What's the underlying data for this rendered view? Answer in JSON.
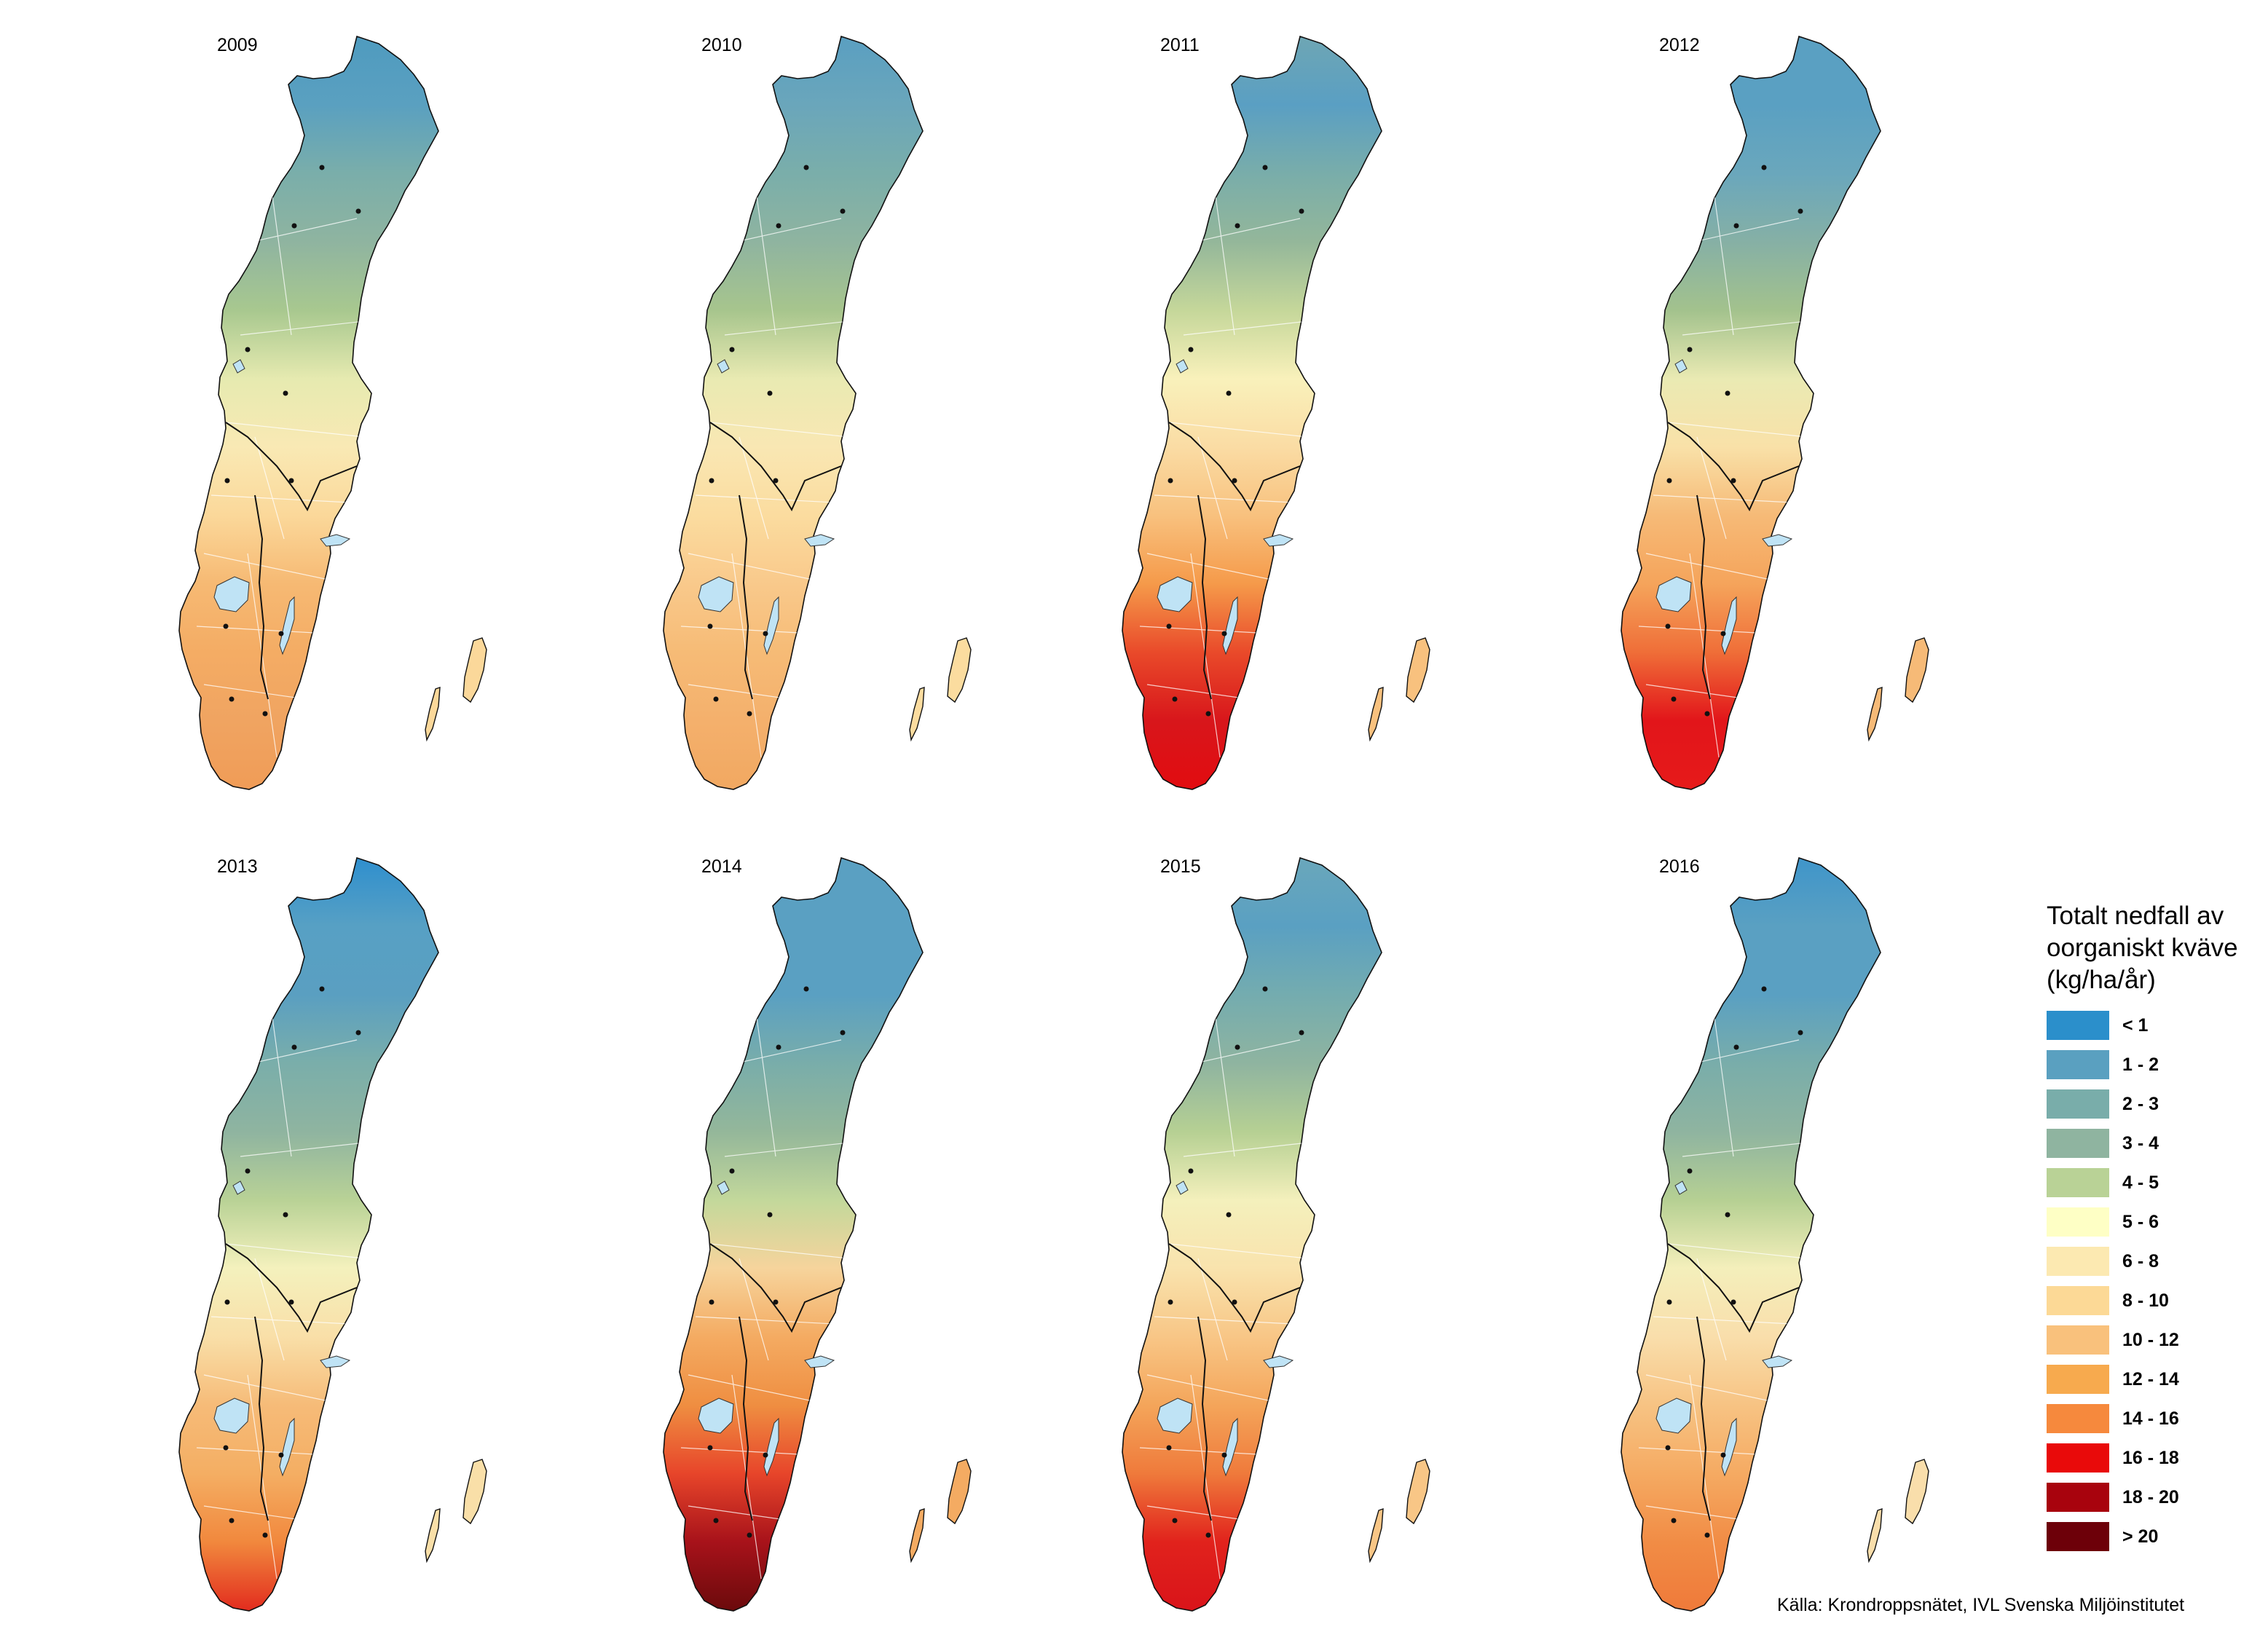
{
  "panels": [
    {
      "year": "2009",
      "gradient": [
        "#4f9bbf",
        "#5aa0c0",
        "#7aaeaa",
        "#8fb4a0",
        "#a8c88f",
        "#e6eab0",
        "#f9e9b4",
        "#fbd89a",
        "#f6b973",
        "#f4ac64",
        "#f0a461",
        "#f09c57"
      ]
    },
    {
      "year": "2010",
      "gradient": [
        "#5a9fc1",
        "#6aa6bb",
        "#7aaeaa",
        "#8fb4a0",
        "#a7c58d",
        "#e9eab2",
        "#f9e7b3",
        "#fbdc9f",
        "#f9c98b",
        "#f6bb76",
        "#f4b06c",
        "#f1a861"
      ]
    },
    {
      "year": "2011",
      "gradient": [
        "#6ea6b4",
        "#5a9fc3",
        "#79adaa",
        "#94b79a",
        "#c5d79a",
        "#f9f1bb",
        "#fadca4",
        "#f8c17e",
        "#f59a4a",
        "#e94a2a",
        "#d8161b",
        "#e20c10"
      ]
    },
    {
      "year": "2012",
      "gradient": [
        "#5aa0c2",
        "#5aa0c2",
        "#6aa7bc",
        "#86b0a5",
        "#a3c28d",
        "#eaeab3",
        "#f9e1a8",
        "#f6ba77",
        "#f5a45b",
        "#ef6e38",
        "#e2151a",
        "#e61a1a"
      ]
    },
    {
      "year": "2013",
      "gradient": [
        "#2f8fce",
        "#57a0c4",
        "#5a9fc1",
        "#7aaeaa",
        "#8fb4a0",
        "#b9d296",
        "#f4f1bd",
        "#f9dfa8",
        "#f6bb78",
        "#f4ae63",
        "#f1883d",
        "#e22c1e"
      ]
    },
    {
      "year": "2014",
      "gradient": [
        "#5aa0c2",
        "#5aa0c2",
        "#5aa0c2",
        "#79adaa",
        "#94b79a",
        "#c3d89b",
        "#f6d49c",
        "#f4ab62",
        "#ef8e41",
        "#e7452a",
        "#a7121a",
        "#6b0a0c"
      ]
    },
    {
      "year": "2015",
      "gradient": [
        "#6aa7bb",
        "#5aa0c2",
        "#74acaf",
        "#8fb4a0",
        "#b6d093",
        "#f4f0bc",
        "#f9e3ad",
        "#f8c686",
        "#f4a55a",
        "#ef7a3b",
        "#e1221c",
        "#d9141a"
      ]
    },
    {
      "year": "2016",
      "gradient": [
        "#3f95ca",
        "#5aa0c2",
        "#5aa0c2",
        "#79adaa",
        "#8fb4a0",
        "#b6d093",
        "#f4efbb",
        "#f9deab",
        "#f7c383",
        "#f5aa62",
        "#f18c45",
        "#ef7a3a"
      ]
    }
  ],
  "legend": {
    "title_lines": [
      "Totalt nedfall av",
      "oorganiskt kväve",
      "(kg/ha/år)"
    ],
    "items": [
      {
        "label": "< 1",
        "color": "#2b8fcb"
      },
      {
        "label": "1 - 2",
        "color": "#5aa0c0"
      },
      {
        "label": "2 - 3",
        "color": "#79adaa"
      },
      {
        "label": "3 - 4",
        "color": "#8fb4a0"
      },
      {
        "label": "4 - 5",
        "color": "#b9d296"
      },
      {
        "label": "5 - 6",
        "color": "#feffc5"
      },
      {
        "label": "6 - 8",
        "color": "#fce9b1"
      },
      {
        "label": "8 - 10",
        "color": "#fcd996"
      },
      {
        "label": "10 - 12",
        "color": "#f9c17c"
      },
      {
        "label": "12 - 14",
        "color": "#f7aa4e"
      },
      {
        "label": "14 - 16",
        "color": "#f6893d"
      },
      {
        "label": "16 - 18",
        "color": "#e90a0a"
      },
      {
        "label": "18 - 20",
        "color": "#a8030d"
      },
      {
        "label": "> 20",
        "color": "#6d0009"
      }
    ]
  },
  "source": "Källa: Krondroppsnätet, IVL Svenska Miljöinstitutet"
}
